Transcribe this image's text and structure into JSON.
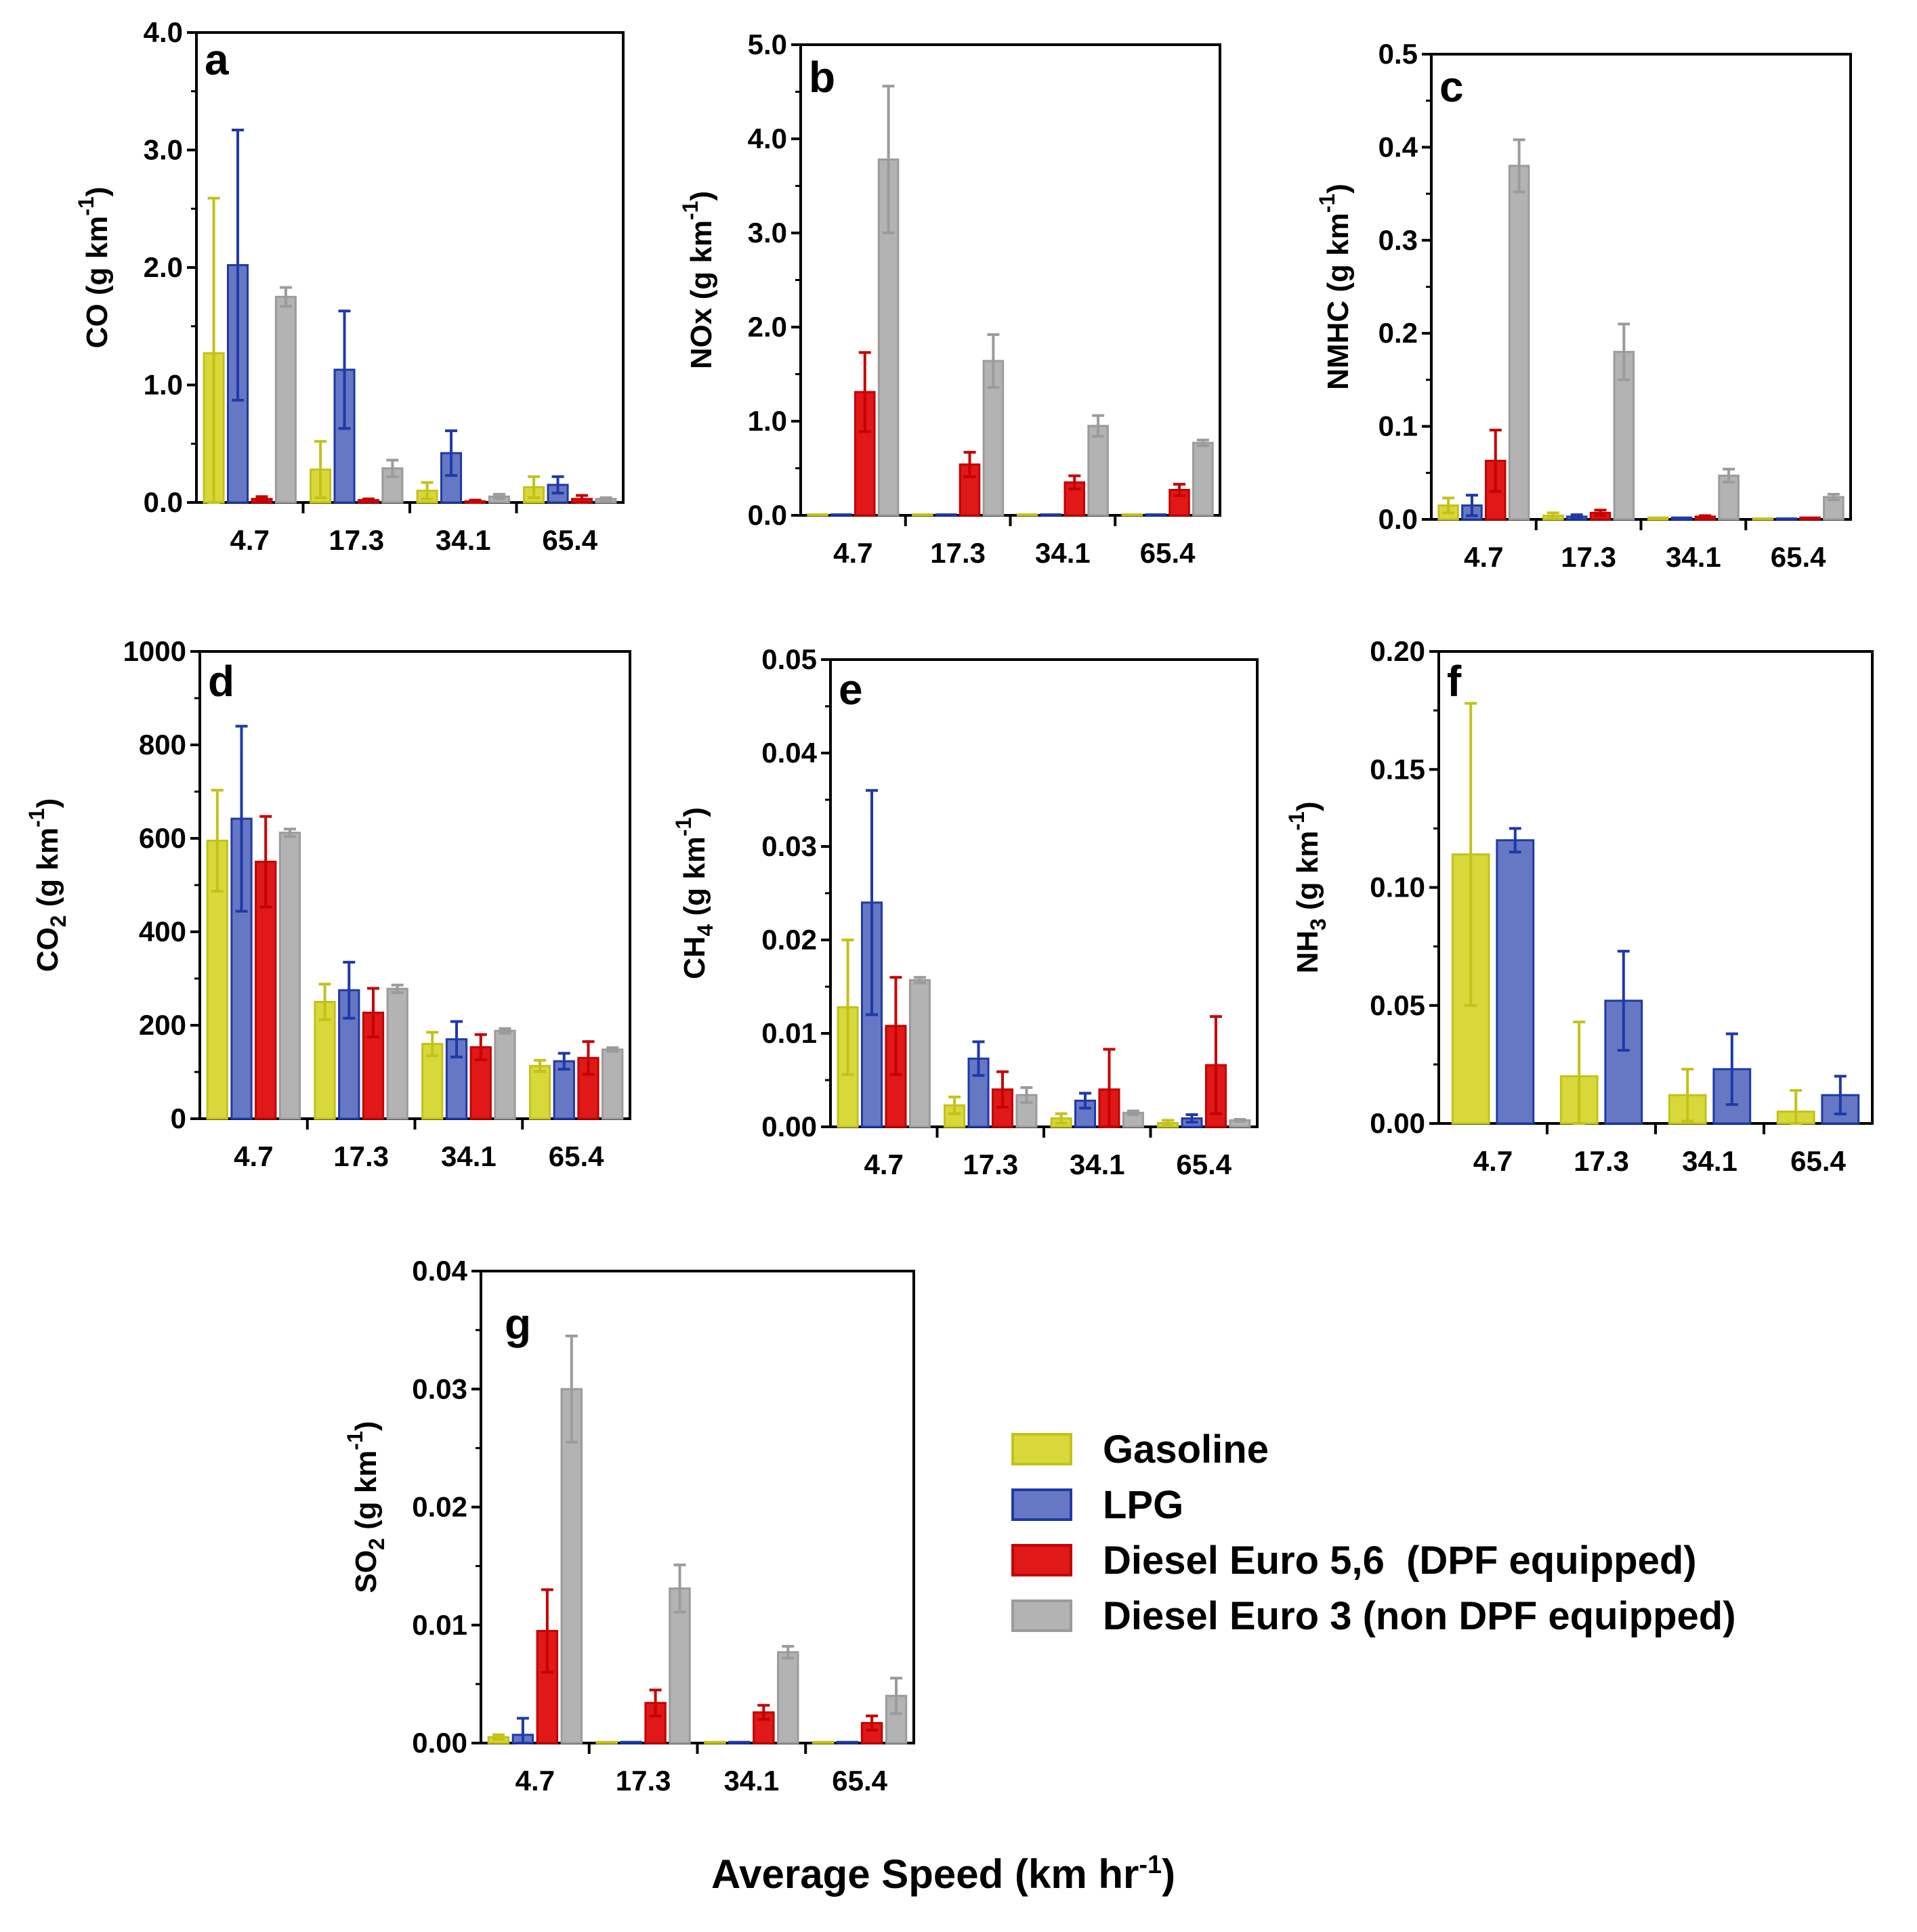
{
  "chart_data": [
    {
      "type": "bar",
      "panel": "a",
      "categories": [
        "4.7",
        "17.3",
        "34.1",
        "65.4"
      ],
      "ylabel": "CO (g km-1)",
      "ylabel_main": "CO",
      "ylabel_unit": "(g km",
      "ylabel_sup": "-1",
      "ylabel_close": ")",
      "ylim": [
        0,
        4.0
      ],
      "yticks": [
        "0.0",
        "1.0",
        "2.0",
        "3.0",
        "4.0"
      ],
      "series": [
        {
          "name": "Gasoline",
          "values": [
            1.27,
            0.28,
            0.1,
            0.13
          ],
          "errors": [
            1.32,
            0.24,
            0.07,
            0.09
          ]
        },
        {
          "name": "LPG",
          "values": [
            2.02,
            1.13,
            0.42,
            0.15
          ],
          "errors": [
            1.15,
            0.5,
            0.19,
            0.07
          ]
        },
        {
          "name": "Diesel Euro 5,6 (DPF equipped)",
          "values": [
            0.03,
            0.02,
            0.01,
            0.03
          ],
          "errors": [
            0.02,
            0.01,
            0.01,
            0.03
          ]
        },
        {
          "name": "Diesel Euro 3 (non DPF equipped)",
          "values": [
            1.75,
            0.29,
            0.05,
            0.03
          ],
          "errors": [
            0.08,
            0.07,
            0.02,
            0.01
          ]
        }
      ]
    },
    {
      "type": "bar",
      "panel": "b",
      "categories": [
        "4.7",
        "17.3",
        "34.1",
        "65.4"
      ],
      "ylabel": "NOx (g km-1)",
      "ylabel_main": "NOx",
      "ylabel_unit": "(g km",
      "ylabel_sup": "-1",
      "ylabel_close": ")",
      "ylim": [
        0,
        5.0
      ],
      "yticks": [
        "0.0",
        "1.0",
        "2.0",
        "3.0",
        "4.0",
        "5.0"
      ],
      "series": [
        {
          "name": "Gasoline",
          "values": [
            0.01,
            0.01,
            0.01,
            0.01
          ],
          "errors": [
            0,
            0,
            0,
            0
          ]
        },
        {
          "name": "LPG",
          "values": [
            0.01,
            0.01,
            0.01,
            0.01
          ],
          "errors": [
            0,
            0,
            0,
            0
          ]
        },
        {
          "name": "Diesel Euro 5,6 (DPF equipped)",
          "values": [
            1.31,
            0.54,
            0.35,
            0.27
          ],
          "errors": [
            0.42,
            0.13,
            0.07,
            0.06
          ]
        },
        {
          "name": "Diesel Euro 3 (non DPF equipped)",
          "values": [
            3.78,
            1.64,
            0.95,
            0.77
          ],
          "errors": [
            0.78,
            0.28,
            0.11,
            0.03
          ]
        }
      ]
    },
    {
      "type": "bar",
      "panel": "c",
      "categories": [
        "4.7",
        "17.3",
        "34.1",
        "65.4"
      ],
      "ylabel": "NMHC (g km-1)",
      "ylabel_main": "NMHC",
      "ylabel_unit": "(g km",
      "ylabel_sup": "-1",
      "ylabel_close": ")",
      "ylim": [
        0,
        0.5
      ],
      "yticks": [
        "0.0",
        "0.1",
        "0.2",
        "0.3",
        "0.4",
        "0.5"
      ],
      "series": [
        {
          "name": "Gasoline",
          "values": [
            0.015,
            0.004,
            0.002,
            0.001
          ],
          "errors": [
            0.008,
            0.003,
            0,
            0
          ]
        },
        {
          "name": "LPG",
          "values": [
            0.015,
            0.003,
            0.002,
            0.001
          ],
          "errors": [
            0.011,
            0.002,
            0,
            0
          ]
        },
        {
          "name": "Diesel Euro 5,6 (DPF equipped)",
          "values": [
            0.063,
            0.007,
            0.003,
            0.002
          ],
          "errors": [
            0.033,
            0.003,
            0.001,
            0
          ]
        },
        {
          "name": "Diesel Euro 3 (non DPF equipped)",
          "values": [
            0.38,
            0.18,
            0.047,
            0.024
          ],
          "errors": [
            0.028,
            0.03,
            0.007,
            0.003
          ]
        }
      ]
    },
    {
      "type": "bar",
      "panel": "d",
      "categories": [
        "4.7",
        "17.3",
        "34.1",
        "65.4"
      ],
      "ylabel": "CO2 (g km-1)",
      "ylabel_main": "CO",
      "ylabel_sub": "2",
      "ylabel_unit": "(g km",
      "ylabel_sup": "-1",
      "ylabel_close": ")",
      "ylim": [
        0,
        1000
      ],
      "yticks": [
        "0",
        "200",
        "400",
        "600",
        "800",
        "1000"
      ],
      "series": [
        {
          "name": "Gasoline",
          "values": [
            595,
            250,
            160,
            113
          ],
          "errors": [
            108,
            38,
            25,
            12
          ]
        },
        {
          "name": "LPG",
          "values": [
            642,
            275,
            170,
            123
          ],
          "errors": [
            198,
            60,
            38,
            17
          ]
        },
        {
          "name": "Diesel Euro 5,6 (DPF equipped)",
          "values": [
            550,
            227,
            153,
            130
          ],
          "errors": [
            97,
            52,
            27,
            35
          ]
        },
        {
          "name": "Diesel Euro 3 (non DPF equipped)",
          "values": [
            612,
            278,
            188,
            148
          ],
          "errors": [
            8,
            8,
            5,
            4
          ]
        }
      ]
    },
    {
      "type": "bar",
      "panel": "e",
      "categories": [
        "4.7",
        "17.3",
        "34.1",
        "65.4"
      ],
      "ylabel": "CH4 (g km-1)",
      "ylabel_main": "CH",
      "ylabel_sub": "4",
      "ylabel_unit": "(g km",
      "ylabel_sup": "-1",
      "ylabel_close": ")",
      "ylim": [
        0,
        0.05
      ],
      "yticks": [
        "0.00",
        "0.01",
        "0.02",
        "0.03",
        "0.04",
        "0.05"
      ],
      "series": [
        {
          "name": "Gasoline",
          "values": [
            0.0128,
            0.0023,
            0.0009,
            0.0004
          ],
          "errors": [
            0.0072,
            0.0009,
            0.0005,
            0.0003
          ]
        },
        {
          "name": "LPG",
          "values": [
            0.024,
            0.0073,
            0.0028,
            0.0009
          ],
          "errors": [
            0.012,
            0.0018,
            0.0008,
            0.0004
          ]
        },
        {
          "name": "Diesel Euro 5,6 (DPF equipped)",
          "values": [
            0.0108,
            0.004,
            0.004,
            0.0066
          ],
          "errors": [
            0.0052,
            0.0019,
            0.0043,
            0.0052
          ]
        },
        {
          "name": "Diesel Euro 3 (non DPF equipped)",
          "values": [
            0.0157,
            0.0034,
            0.0015,
            0.0007
          ],
          "errors": [
            0.0003,
            0.0008,
            0.0002,
            0.0001
          ]
        }
      ]
    },
    {
      "type": "bar",
      "panel": "f",
      "categories": [
        "4.7",
        "17.3",
        "34.1",
        "65.4"
      ],
      "ylabel": "NH3 (g km-1)",
      "ylabel_main": "NH",
      "ylabel_sub": "3",
      "ylabel_unit": "(g km",
      "ylabel_sup": "-1",
      "ylabel_close": ")",
      "ylim": [
        0,
        0.2
      ],
      "yticks": [
        "0.00",
        "0.05",
        "0.10",
        "0.15",
        "0.20"
      ],
      "series": [
        {
          "name": "Gasoline",
          "values": [
            0.114,
            0.02,
            0.012,
            0.005
          ],
          "errors": [
            0.064,
            0.023,
            0.011,
            0.009
          ]
        },
        {
          "name": "LPG",
          "values": [
            0.12,
            0.052,
            0.023,
            0.012
          ],
          "errors": [
            0.005,
            0.021,
            0.015,
            0.008
          ]
        }
      ]
    },
    {
      "type": "bar",
      "panel": "g",
      "categories": [
        "4.7",
        "17.3",
        "34.1",
        "65.4"
      ],
      "ylabel": "SO2 (g km-1)",
      "ylabel_main": "SO",
      "ylabel_sub": "2",
      "ylabel_unit": "(g km",
      "ylabel_sup": "-1",
      "ylabel_close": ")",
      "ylim": [
        0,
        0.04
      ],
      "yticks": [
        "0.00",
        "0.01",
        "0.02",
        "0.03",
        "0.04"
      ],
      "series": [
        {
          "name": "Gasoline",
          "values": [
            0.0005,
            0.0001,
            0.0001,
            0.0001
          ],
          "errors": [
            0.0002,
            0,
            0,
            0
          ]
        },
        {
          "name": "LPG",
          "values": [
            0.0007,
            0.0001,
            0.0001,
            0.0001
          ],
          "errors": [
            0.0014,
            0,
            0,
            0
          ]
        },
        {
          "name": "Diesel Euro 5,6 (DPF equipped)",
          "values": [
            0.0095,
            0.0034,
            0.0026,
            0.0017
          ],
          "errors": [
            0.0035,
            0.0011,
            0.0006,
            0.0006
          ]
        },
        {
          "name": "Diesel Euro 3 (non DPF equipped)",
          "values": [
            0.03,
            0.0131,
            0.0077,
            0.004
          ],
          "errors": [
            0.0045,
            0.002,
            0.0005,
            0.0015
          ]
        }
      ]
    }
  ],
  "legend": {
    "items": [
      {
        "label": "Gasoline",
        "fill": "#d8d83a",
        "stroke": "#c2c219"
      },
      {
        "label": "LPG",
        "fill": "#6678c4",
        "stroke": "#1e39a8"
      },
      {
        "label": "Diesel Euro 5,6  (DPF equipped)",
        "fill": "#e01818",
        "stroke": "#c40000"
      },
      {
        "label": "Diesel Euro 3 (non DPF equipped)",
        "fill": "#b3b3b3",
        "stroke": "#9b9b9b"
      }
    ]
  },
  "series_colors": {
    "Gasoline": {
      "fill": "#d8d83a",
      "stroke": "#c2c219"
    },
    "LPG": {
      "fill": "#6678c4",
      "stroke": "#1e39a8"
    },
    "Diesel Euro 5,6 (DPF equipped)": {
      "fill": "#e01818",
      "stroke": "#c40000"
    },
    "Diesel Euro 3 (non DPF equipped)": {
      "fill": "#b3b3b3",
      "stroke": "#9b9b9b"
    }
  },
  "x_axis_title": {
    "main": "Average Speed (km hr",
    "sup": "-1",
    "close": ")"
  }
}
